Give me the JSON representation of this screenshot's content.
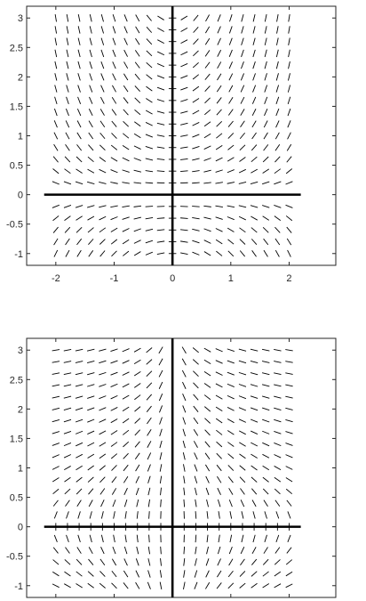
{
  "chart_data": [
    {
      "type": "direction_field",
      "title": "",
      "xlabel": "",
      "ylabel": "",
      "xlim": [
        -2.5,
        2.8
      ],
      "ylim": [
        -1.2,
        3.2
      ],
      "xticks": [
        -2,
        -1,
        0,
        1,
        2
      ],
      "xtick_labels": [
        "-2",
        "-1",
        "0",
        "1",
        "2"
      ],
      "yticks": [
        3,
        2.5,
        2,
        1.5,
        1,
        0.5,
        0,
        -0.5,
        -1
      ],
      "ytick_labels": [
        "3",
        "2.5",
        "2",
        "1.5",
        "1",
        "0.5",
        "0",
        "-0.5",
        "-1"
      ],
      "show_xtick_labels": true,
      "grid_x": {
        "start": -2,
        "step": 0.2,
        "count": 21
      },
      "grid_y": {
        "start": -1,
        "step": 0.2,
        "count": 21
      },
      "slope_field": "x*y",
      "reference_lines": {
        "x": 0,
        "y": 0
      }
    },
    {
      "type": "direction_field",
      "title": "",
      "xlabel": "",
      "ylabel": "",
      "xlim": [
        -2.5,
        2.8
      ],
      "ylim": [
        -1.2,
        3.2
      ],
      "xticks": [
        -2,
        -1,
        0,
        1,
        2
      ],
      "xtick_labels": [
        "",
        "",
        "",
        "",
        ""
      ],
      "yticks": [
        3,
        2.5,
        2,
        1.5,
        1,
        0.5,
        0,
        -0.5,
        -1
      ],
      "ytick_labels": [
        "3",
        "2.5",
        "2",
        "1.5",
        "1",
        "0.5",
        "0",
        "-0.5",
        "-1"
      ],
      "show_xtick_labels": false,
      "grid_x": {
        "start": -2,
        "step": 0.2,
        "count": 21
      },
      "grid_y": {
        "start": -1,
        "step": 0.2,
        "count": 21
      },
      "slope_field": "-1/(x*y)",
      "reference_lines": {
        "x": 0,
        "y": 0
      }
    }
  ]
}
